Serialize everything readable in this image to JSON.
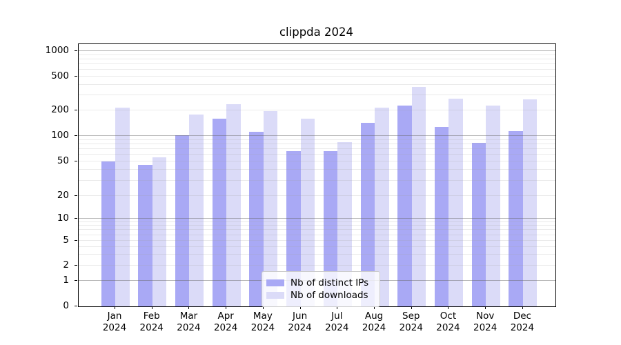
{
  "title": "clippda 2024",
  "legend": {
    "items": [
      {
        "label": "Nb of distinct IPs",
        "color": "#a9a9f5"
      },
      {
        "label": "Nb of downloads",
        "color": "#dbdbf8"
      }
    ]
  },
  "chart_data": {
    "type": "bar",
    "title": "clippda 2024",
    "categories": [
      "Jan 2024",
      "Feb 2024",
      "Mar 2024",
      "Apr 2024",
      "May 2024",
      "Jun 2024",
      "Jul 2024",
      "Aug 2024",
      "Sep 2024",
      "Oct 2024",
      "Nov 2024",
      "Dec 2024"
    ],
    "x_tick_lines": [
      [
        "Jan",
        "2024"
      ],
      [
        "Feb",
        "2024"
      ],
      [
        "Mar",
        "2024"
      ],
      [
        "Apr",
        "2024"
      ],
      [
        "May",
        "2024"
      ],
      [
        "Jun",
        "2024"
      ],
      [
        "Jul",
        "2024"
      ],
      [
        "Aug",
        "2024"
      ],
      [
        "Sep",
        "2024"
      ],
      [
        "Oct",
        "2024"
      ],
      [
        "Nov",
        "2024"
      ],
      [
        "Dec",
        "2024"
      ]
    ],
    "series": [
      {
        "name": "Nb of distinct IPs",
        "color": "#a9a9f5",
        "values": [
          50,
          46,
          101,
          160,
          112,
          66,
          66,
          143,
          230,
          128,
          83,
          114
        ]
      },
      {
        "name": "Nb of downloads",
        "color": "#dbdbf8",
        "values": [
          216,
          56,
          180,
          238,
          198,
          160,
          85,
          215,
          380,
          273,
          228,
          270
        ]
      }
    ],
    "yscale": "symlog",
    "yticks": [
      0,
      1,
      2,
      5,
      10,
      20,
      50,
      100,
      200,
      500,
      1000
    ],
    "ytick_labels": [
      "0",
      "1",
      "2",
      "5",
      "10",
      "20",
      "50",
      "100",
      "200",
      "500",
      "1000"
    ],
    "ylim": [
      0,
      1250
    ],
    "grid": true,
    "legend_position": "lower center"
  }
}
